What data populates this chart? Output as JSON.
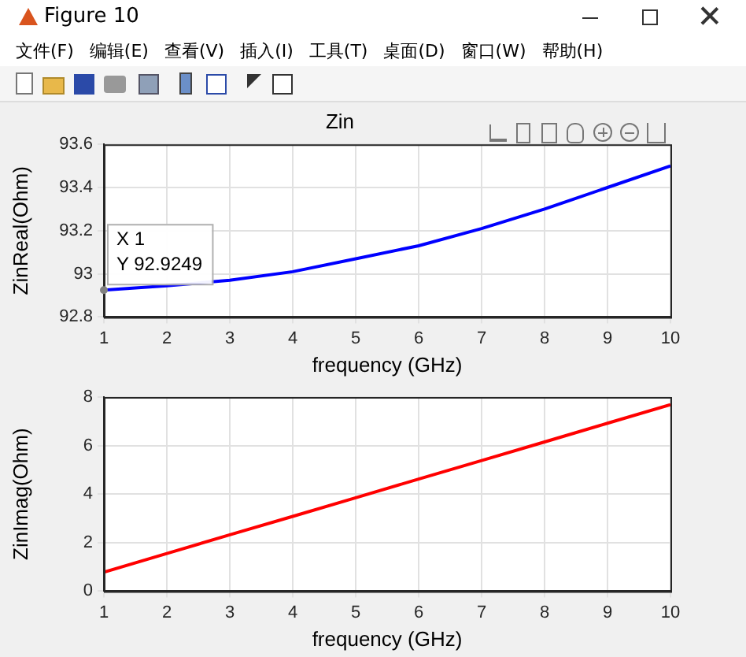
{
  "chart_data": [
    {
      "type": "line",
      "title": "Zin",
      "xlabel": "frequency (GHz)",
      "ylabel": "ZinReal(Ohm)",
      "x": [
        1,
        2,
        3,
        4,
        5,
        6,
        7,
        8,
        9,
        10
      ],
      "series": [
        {
          "color": "#0000ff",
          "values": [
            92.925,
            92.945,
            92.97,
            93.01,
            93.07,
            93.13,
            93.21,
            93.3,
            93.4,
            93.5
          ]
        }
      ],
      "xlim": [
        1,
        10
      ],
      "xticks": [
        1,
        2,
        3,
        4,
        5,
        6,
        7,
        8,
        9,
        10
      ],
      "ylim": [
        92.8,
        93.6
      ],
      "yticks": [
        92.8,
        93,
        93.2,
        93.4,
        93.6
      ],
      "grid": true,
      "legend": false,
      "marker": "none",
      "line_style": "solid",
      "annotations": [
        "Figure 10",
        "文件(F)",
        "编辑(E)",
        "查看(V)",
        "插入(I)",
        "工具(T)",
        "桌面(D)",
        "窗口(W)",
        "帮助(H)",
        {
          "text": "X 1\nY 92.9249",
          "x": 1,
          "y": 92.9249
        }
      ]
    },
    {
      "type": "line",
      "xlabel": "frequency (GHz)",
      "ylabel": "ZinImag(Ohm)",
      "x": [
        1,
        2,
        3,
        4,
        5,
        6,
        7,
        8,
        9,
        10
      ],
      "series": [
        {
          "color": "#ff0000",
          "values": [
            0.78,
            1.55,
            2.32,
            3.08,
            3.85,
            4.62,
            5.38,
            6.15,
            6.92,
            7.69
          ]
        }
      ],
      "xlim": [
        1,
        10
      ],
      "xticks": [
        1,
        2,
        3,
        4,
        5,
        6,
        7,
        8,
        9,
        10
      ],
      "ylim": [
        0,
        8
      ],
      "yticks": [
        0,
        2,
        4,
        6,
        8
      ],
      "grid": true,
      "legend": false,
      "marker": "none",
      "line_style": "solid"
    }
  ]
}
